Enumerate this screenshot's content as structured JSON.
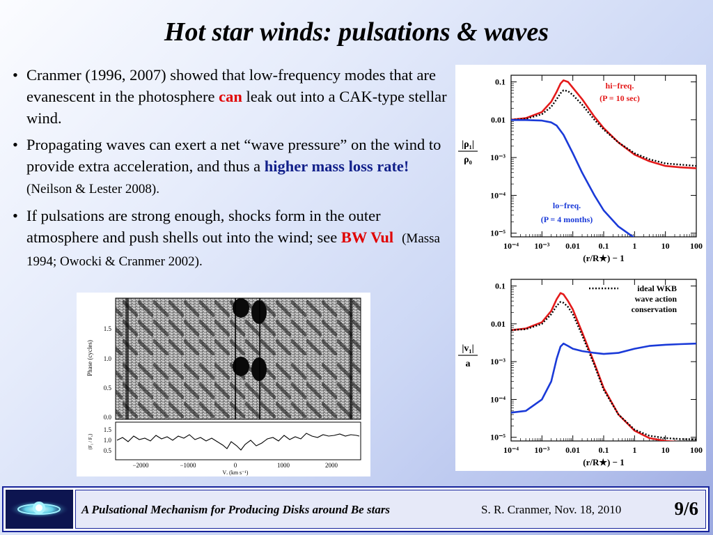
{
  "slide": {
    "title": "Hot star winds:  pulsations & waves",
    "bullets": [
      {
        "dot": "•",
        "text": "Cranmer (1996, 2007) showed that low-frequency modes that are evanescent in the photosphere ",
        "emph": "can",
        "tail": " leak out into a CAK-type stellar wind."
      },
      {
        "dot": "•",
        "text": "Propagating waves can exert a net “wave pressure” on the wind to provide extra acceleration, and thus a ",
        "emph": "higher mass loss rate!",
        "cite": "(Neilson & Lester 2008)."
      },
      {
        "dot": "•",
        "text": "If pulsations are strong enough, shocks form in the outer atmosphere and push shells out into the wind; see ",
        "emph": "BW Vul",
        "cite": "(Massa 1994; Owocki & Cranmer 2002)."
      }
    ]
  },
  "colors": {
    "red": "#e00000",
    "blue": "#12208a",
    "curve_red": "#e41a1a",
    "curve_blue": "#1a3ad8"
  },
  "spectrum_plot": {
    "ylabel": "Phase (cycles)",
    "yticks": [
      "0.0",
      "0.5",
      "1.0",
      "1.5"
    ],
    "ylabel2": "⟨F₁ / F꜀⟩",
    "yticks2": [
      "0.5",
      "1.0",
      "1.5"
    ],
    "xticks": [
      "−2000",
      "−1000",
      "0",
      "1000",
      "2000"
    ],
    "xlabel": "Vᵣ  (km s⁻¹)"
  },
  "chart_data": [
    {
      "type": "line",
      "ylabel_top": "|ρ₁|",
      "ylabel_bottom": "ρ₀",
      "xlabel": "(r/R★) − 1",
      "x_ticks": [
        "10⁻⁴",
        "10⁻³",
        "0.01",
        "0.1",
        "1",
        "10",
        "100"
      ],
      "y_ticks": [
        "0.1",
        "0.01",
        "10⁻³",
        "10⁻⁴",
        "10⁻⁵"
      ],
      "x_scale": "log",
      "y_scale": "log",
      "xlim": [
        0.0001,
        100
      ],
      "ylim": [
        8e-06,
        0.15
      ],
      "annotations": [
        "hi−freq.",
        "(P = 10 sec)",
        "lo−freq.",
        "(P = 4 months)"
      ],
      "series": [
        {
          "color": "#e41a1a",
          "style": "solid",
          "x": [
            5e-05,
            0.0001,
            0.0003,
            0.001,
            0.002,
            0.003,
            0.004,
            0.005,
            0.007,
            0.01,
            0.02,
            0.05,
            0.1,
            0.3,
            1,
            3,
            10,
            30,
            100
          ],
          "y": [
            0.0095,
            0.01,
            0.011,
            0.016,
            0.03,
            0.055,
            0.09,
            0.11,
            0.1,
            0.07,
            0.035,
            0.012,
            0.006,
            0.0025,
            0.0012,
            0.0008,
            0.0006,
            0.00055,
            0.00052
          ]
        },
        {
          "color": "#000000",
          "style": "dotted",
          "x": [
            5e-05,
            0.0001,
            0.0003,
            0.001,
            0.002,
            0.003,
            0.004,
            0.005,
            0.007,
            0.01,
            0.02,
            0.05,
            0.1,
            0.3,
            1,
            3,
            10,
            30,
            100
          ],
          "y": [
            0.0095,
            0.01,
            0.0105,
            0.014,
            0.022,
            0.035,
            0.05,
            0.06,
            0.057,
            0.045,
            0.025,
            0.01,
            0.0055,
            0.0025,
            0.0013,
            0.0009,
            0.0007,
            0.00065,
            0.0006
          ]
        },
        {
          "color": "#1a3ad8",
          "style": "solid",
          "x": [
            5e-05,
            0.0001,
            0.0003,
            0.001,
            0.002,
            0.003,
            0.005,
            0.01,
            0.02,
            0.05,
            0.1,
            0.3,
            1,
            3,
            10,
            30,
            100
          ],
          "y": [
            0.0095,
            0.0098,
            0.0098,
            0.0095,
            0.0085,
            0.007,
            0.004,
            0.0013,
            0.0004,
            0.0001,
            4e-05,
            1.5e-05,
            7.5e-06,
            6.2e-06,
            6e-06,
            6e-06,
            6e-06
          ]
        }
      ]
    },
    {
      "type": "line",
      "ylabel_top": "|v₁|",
      "ylabel_bottom": "a",
      "xlabel": "(r/R★) − 1",
      "x_ticks": [
        "10⁻⁴",
        "10⁻³",
        "0.01",
        "0.1",
        "1",
        "10",
        "100"
      ],
      "y_ticks": [
        "0.1",
        "0.01",
        "10⁻³",
        "10⁻⁴",
        "10⁻⁵"
      ],
      "x_scale": "log",
      "y_scale": "log",
      "xlim": [
        0.0001,
        100
      ],
      "ylim": [
        8e-06,
        0.15
      ],
      "legend": [
        "ideal WKB",
        "wave action",
        "conservation"
      ],
      "series": [
        {
          "color": "#e41a1a",
          "style": "solid",
          "x": [
            5e-05,
            0.0001,
            0.0003,
            0.001,
            0.002,
            0.003,
            0.004,
            0.005,
            0.007,
            0.01,
            0.02,
            0.05,
            0.1,
            0.3,
            1,
            3,
            10,
            30,
            100
          ],
          "y": [
            0.0065,
            0.0068,
            0.0075,
            0.011,
            0.022,
            0.045,
            0.065,
            0.06,
            0.04,
            0.024,
            0.006,
            0.0009,
            0.0002,
            4e-05,
            1.5e-05,
            9.5e-06,
            8e-06,
            7.5e-06,
            7.2e-06
          ]
        },
        {
          "color": "#000000",
          "style": "dotted",
          "x": [
            5e-05,
            0.0001,
            0.0003,
            0.001,
            0.002,
            0.003,
            0.004,
            0.005,
            0.007,
            0.01,
            0.02,
            0.05,
            0.1,
            0.3,
            1,
            3,
            10,
            30,
            100
          ],
          "y": [
            0.0065,
            0.0068,
            0.0072,
            0.01,
            0.018,
            0.03,
            0.038,
            0.036,
            0.028,
            0.018,
            0.005,
            0.0008,
            0.00018,
            4e-05,
            1.6e-05,
            1.1e-05,
            9.5e-06,
            9e-06,
            8.8e-06
          ]
        },
        {
          "color": "#1a3ad8",
          "style": "solid",
          "x": [
            5e-05,
            0.0001,
            0.0003,
            0.001,
            0.002,
            0.003,
            0.004,
            0.005,
            0.007,
            0.01,
            0.02,
            0.05,
            0.1,
            0.3,
            1,
            3,
            10,
            30,
            100
          ],
          "y": [
            4e-05,
            4.5e-05,
            5e-05,
            0.0001,
            0.0003,
            0.0012,
            0.0025,
            0.003,
            0.0026,
            0.0022,
            0.0019,
            0.0017,
            0.0016,
            0.0017,
            0.0022,
            0.0026,
            0.0028,
            0.0029,
            0.003
          ]
        }
      ]
    }
  ],
  "footer": {
    "talk_title": "A Pulsational Mechanism for Producing Disks around Be stars",
    "author_date": "S. R. Cranmer, Nov. 18, 2010",
    "page": "9/6"
  }
}
